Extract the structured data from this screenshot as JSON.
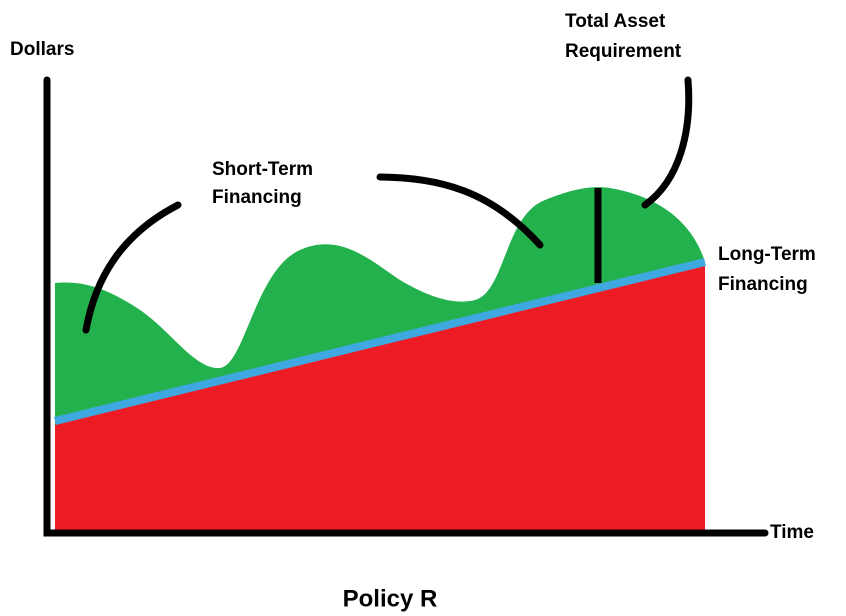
{
  "axes": {
    "y_label": "Dollars",
    "x_label": "Time"
  },
  "labels": {
    "short_term": [
      "Short-Term",
      "Financing"
    ],
    "total_asset": [
      "Total Asset",
      "Requirement"
    ],
    "long_term": [
      "Long-Term",
      "Financing"
    ]
  },
  "caption": "Policy R"
}
